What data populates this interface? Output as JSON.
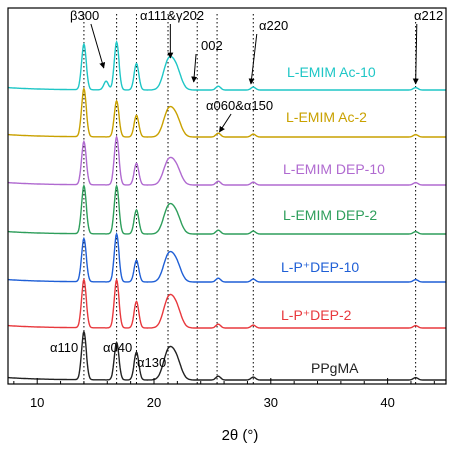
{
  "chart_data": {
    "type": "line",
    "title": "",
    "xlabel": "2θ (°)",
    "ylabel": "",
    "xlim": [
      7.5,
      45
    ],
    "x_ticks": [
      10,
      20,
      30,
      40
    ],
    "grid": false,
    "series": [
      {
        "name": "PPgMA",
        "color": "#222222",
        "peaks": [
          [
            14.0,
            1.0
          ],
          [
            16.8,
            0.78
          ],
          [
            18.5,
            0.58
          ],
          [
            21.2,
            0.55
          ],
          [
            21.9,
            0.42
          ],
          [
            25.5,
            0.08
          ],
          [
            28.5,
            0.06
          ],
          [
            42.4,
            0.05
          ]
        ]
      },
      {
        "name": "L-P⁺DEP-2",
        "color": "#e8383d",
        "peaks": [
          [
            14.0,
            1.0
          ],
          [
            16.8,
            1.0
          ],
          [
            18.5,
            0.55
          ],
          [
            21.2,
            0.55
          ],
          [
            21.9,
            0.42
          ],
          [
            25.5,
            0.08
          ],
          [
            28.5,
            0.06
          ],
          [
            42.4,
            0.05
          ]
        ]
      },
      {
        "name": "L-P⁺DEP-10",
        "color": "#1f5fd6",
        "peaks": [
          [
            14.0,
            0.9
          ],
          [
            16.8,
            1.0
          ],
          [
            18.5,
            0.45
          ],
          [
            21.2,
            0.5
          ],
          [
            21.9,
            0.38
          ],
          [
            25.5,
            0.08
          ],
          [
            28.5,
            0.06
          ],
          [
            42.4,
            0.05
          ]
        ]
      },
      {
        "name": "L-EMIM DEP-2",
        "color": "#2e9e5b",
        "peaks": [
          [
            14.0,
            1.0
          ],
          [
            16.8,
            1.0
          ],
          [
            18.5,
            0.5
          ],
          [
            21.2,
            0.5
          ],
          [
            21.9,
            0.38
          ],
          [
            25.5,
            0.08
          ],
          [
            28.5,
            0.06
          ],
          [
            42.4,
            0.05
          ]
        ]
      },
      {
        "name": "L-EMIM DEP-10",
        "color": "#b06ad0",
        "peaks": [
          [
            14.0,
            0.9
          ],
          [
            16.8,
            1.0
          ],
          [
            18.5,
            0.45
          ],
          [
            21.2,
            0.45
          ],
          [
            21.9,
            0.35
          ],
          [
            25.5,
            0.08
          ],
          [
            28.5,
            0.06
          ],
          [
            42.4,
            0.05
          ]
        ]
      },
      {
        "name": "L-EMIM Ac-2",
        "color": "#c9a100",
        "peaks": [
          [
            14.0,
            1.0
          ],
          [
            16.8,
            0.75
          ],
          [
            18.5,
            0.45
          ],
          [
            21.2,
            0.5
          ],
          [
            21.9,
            0.38
          ],
          [
            25.5,
            0.08
          ],
          [
            28.5,
            0.06
          ],
          [
            42.4,
            0.05
          ]
        ]
      },
      {
        "name": "L-EMIM Ac-10",
        "color": "#1fc6c6",
        "peaks": [
          [
            14.0,
            0.95
          ],
          [
            15.9,
            0.18
          ],
          [
            16.8,
            1.0
          ],
          [
            18.5,
            0.55
          ],
          [
            21.2,
            0.55
          ],
          [
            21.9,
            0.42
          ],
          [
            25.5,
            0.08
          ],
          [
            28.5,
            0.06
          ],
          [
            42.4,
            0.05
          ]
        ]
      }
    ],
    "reference_lines_x": [
      14.0,
      16.8,
      18.5,
      21.2,
      23.7,
      25.4,
      28.5,
      42.4
    ],
    "annotations": [
      {
        "text": "α110"
      },
      {
        "text": "α040"
      },
      {
        "text": "α130"
      },
      {
        "text": "β300"
      },
      {
        "text": "α111&γ202"
      },
      {
        "text": "002"
      },
      {
        "text": "α220"
      },
      {
        "text": "α060&α150"
      },
      {
        "text": "α212"
      }
    ]
  }
}
